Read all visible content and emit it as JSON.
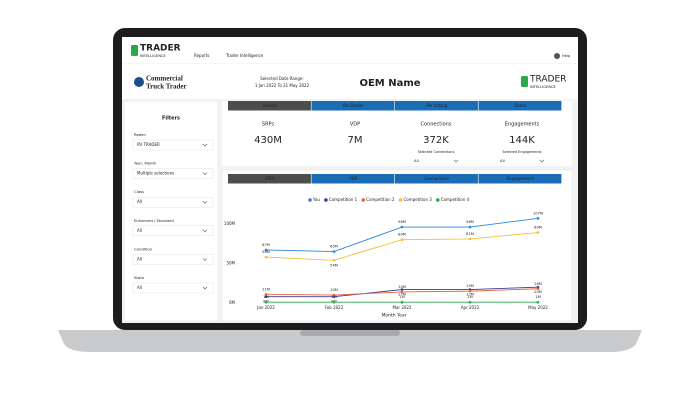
{
  "nav": {
    "logo": "TRADER",
    "logo_sub": "INTELLIGENCE",
    "menu": [
      "Reports",
      "Trader Intelligence"
    ],
    "help": "Help"
  },
  "header": {
    "brand": [
      "Commercial",
      "Truck Trader"
    ],
    "date_range_label": "Selected Date Range:",
    "date_range": "1 Jan 2022 To 31 May 2022",
    "title": "OEM Name",
    "logo": "TRADER",
    "logo_sub": "INTELLIGENCE"
  },
  "tabs": [
    "Overall",
    "Per Dealer",
    "Per Listing",
    "Share"
  ],
  "active_tab": 0,
  "filters": {
    "title": "Filters",
    "items": [
      {
        "label": "Realm",
        "value": "RV TRADER"
      },
      {
        "label": "Year, Month",
        "value": "Multiple selections"
      },
      {
        "label": "Class",
        "value": "All"
      },
      {
        "label": "Enhanced / Standard",
        "value": "All"
      },
      {
        "label": "Condition",
        "value": "All"
      },
      {
        "label": "State",
        "value": "All"
      }
    ]
  },
  "kpis": [
    {
      "label": "SRPs",
      "value": "430M"
    },
    {
      "label": "VDP",
      "value": "7M"
    },
    {
      "label": "Connections",
      "value": "372K",
      "sub": "Selected Connections",
      "select": "All"
    },
    {
      "label": "Engagements",
      "value": "144K",
      "sub": "Selected Engagements",
      "select": "All"
    }
  ],
  "chart_tabs": [
    "SRPs",
    "VDP",
    "Connections",
    "Engagements"
  ],
  "active_chart_tab": 0,
  "chart_data": {
    "type": "line",
    "x_label": "Month Year",
    "categories": [
      "Jan 2022",
      "Feb 2022",
      "Mar 2022",
      "Apr 2022",
      "May 2022"
    ],
    "ylim": [
      0,
      115
    ],
    "yticks": [
      {
        "value": 0,
        "label": "0M"
      },
      {
        "value": 50,
        "label": "50M"
      },
      {
        "value": 100,
        "label": "100M"
      }
    ],
    "series": [
      {
        "name": "You",
        "color": "#2b86d9",
        "values": [
          67,
          65,
          96,
          96,
          107
        ],
        "value_labels": [
          "67M",
          "65M",
          "96M",
          "96M",
          "107M"
        ]
      },
      {
        "name": "Competition 1",
        "color": "#3b3b9e",
        "values": [
          8,
          8,
          17,
          17,
          20
        ],
        "value_labels": [
          "8M",
          "8M",
          "17M",
          "17M",
          "20M"
        ]
      },
      {
        "name": "Competition 2",
        "color": "#e8643a",
        "values": [
          11,
          10,
          14,
          15,
          18
        ],
        "value_labels": [
          "11M",
          "10M",
          "14M",
          "15M",
          "18M"
        ]
      },
      {
        "name": "Competition 3",
        "color": "#f2c12e",
        "values": [
          58,
          54,
          80,
          81,
          89
        ],
        "value_labels": [
          "58M",
          "54M",
          "80M",
          "81M",
          "89M"
        ]
      },
      {
        "name": "Competition 4",
        "color": "#2aa84a",
        "values": [
          1,
          1,
          1,
          1,
          1
        ],
        "value_labels": [
          "1M",
          "1M",
          "1M",
          "1M",
          "1M"
        ]
      }
    ]
  }
}
